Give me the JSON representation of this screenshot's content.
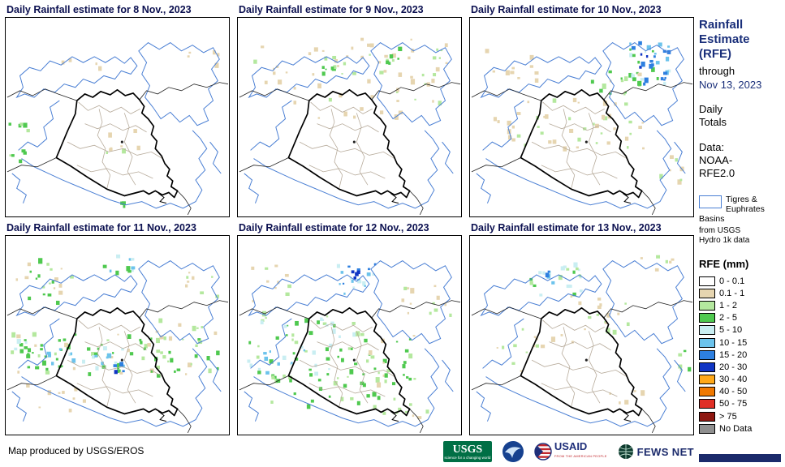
{
  "panels": [
    {
      "title": "Daily Rainfall estimate for 8 Nov., 2023"
    },
    {
      "title": "Daily Rainfall estimate for 9 Nov., 2023"
    },
    {
      "title": "Daily Rainfall estimate for 10 Nov., 2023"
    },
    {
      "title": "Daily Rainfall estimate for 11 Nov., 2023"
    },
    {
      "title": "Daily Rainfall estimate for 12 Nov., 2023"
    },
    {
      "title": "Daily Rainfall estimate for 13 Nov., 2023"
    }
  ],
  "sidebar": {
    "header": "Rainfall\nEstimate\n(RFE)",
    "through": "through",
    "date": "Nov 13, 2023",
    "totals": "Daily\nTotals",
    "data_source": "Data:\nNOAA-\nRFE2.0",
    "basins": {
      "label": "Tigres & Euphrates Basins",
      "source": "from USGS Hydro 1k data"
    },
    "legend": {
      "title": "RFE (mm)",
      "items": [
        {
          "label": "0 - 0.1",
          "color": "#FFFFFF"
        },
        {
          "label": "0.1 - 1",
          "color": "#E6D5B0"
        },
        {
          "label": "1 - 2",
          "color": "#B4E89E"
        },
        {
          "label": "2 - 5",
          "color": "#4FC94F"
        },
        {
          "label": "5 - 10",
          "color": "#C9EEF2"
        },
        {
          "label": "10 - 15",
          "color": "#6CC3EC"
        },
        {
          "label": "15 - 20",
          "color": "#2D7FE0"
        },
        {
          "label": "20 - 30",
          "color": "#1035C4"
        },
        {
          "label": "30 - 40",
          "color": "#FFA818"
        },
        {
          "label": "40 - 50",
          "color": "#F07800"
        },
        {
          "label": "50 - 75",
          "color": "#E02F26"
        },
        {
          "label": "> 75",
          "color": "#8E1710"
        },
        {
          "label": "No Data",
          "color": "#8F8F8F"
        }
      ]
    }
  },
  "footer": {
    "attribution": "Map produced by USGS/EROS",
    "logos": [
      {
        "name": "USGS",
        "tagline": "science for a changing world"
      },
      {
        "name": "NOAA"
      },
      {
        "name": "USAID",
        "tagline": "FROM THE AMERICAN PEOPLE"
      },
      {
        "name": "FEWS NET"
      }
    ]
  },
  "colors": {
    "accent_navy": "#1b2a6b",
    "basin_blue": "#4a7fd4",
    "iraq_border": "#000000",
    "admin_gray": "#b7ab9b"
  }
}
